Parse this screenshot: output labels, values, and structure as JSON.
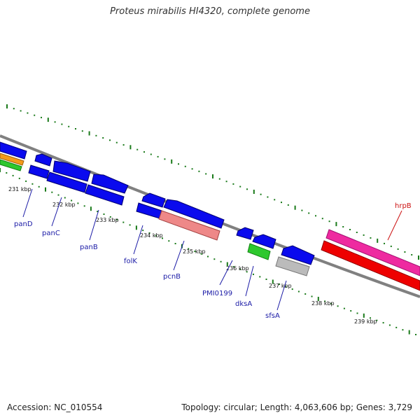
{
  "header": {
    "title": "Proteus mirabilis HI4320, complete genome"
  },
  "footer": {
    "accession": "Accession: NC_010554",
    "summary": "Topology: circular; Length: 4,063,606 bp; Genes: 3,729"
  },
  "scale_ticks": [
    "231 kbp",
    "232 kbp",
    "233 kbp",
    "234 kbp",
    "235 kbp",
    "236 kbp",
    "237 kbp",
    "238 kbp",
    "239 kbp"
  ],
  "genes": [
    "panD",
    "panC",
    "panB",
    "folK",
    "pcnB",
    "PMI0199",
    "dksA",
    "sfsA",
    "hrpB"
  ],
  "colors": {
    "cds": "#0a0aee",
    "rrna_pink": "#ee2aa0",
    "red": "#ee0000",
    "orange": "#f49a1a",
    "green": "#2ec82e",
    "gray": "#aaaaaa",
    "backbone": "#808080",
    "tick": "#1a7a1a"
  }
}
